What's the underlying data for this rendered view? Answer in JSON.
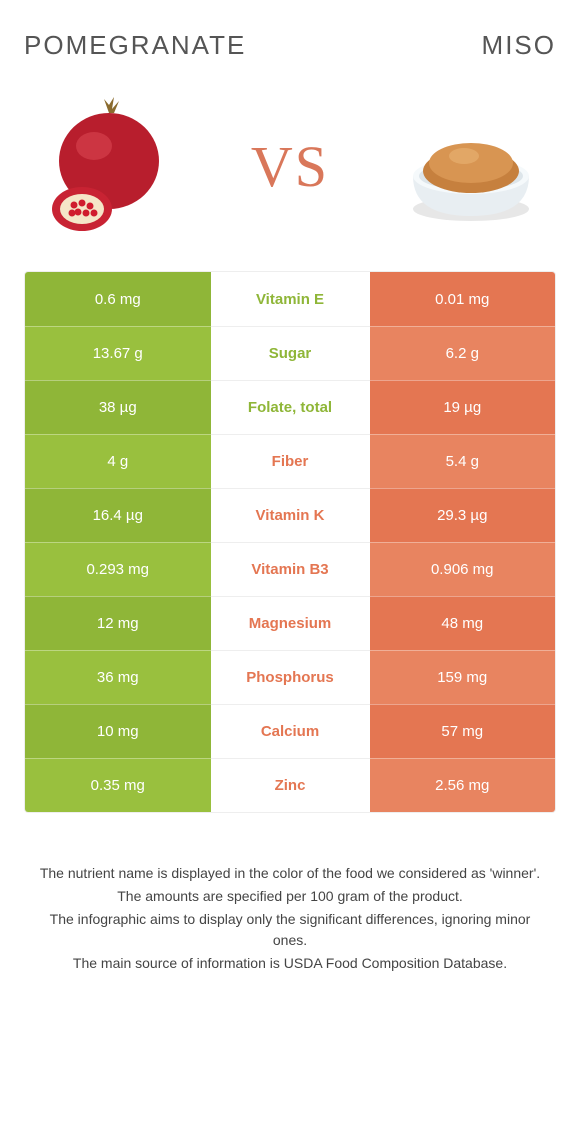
{
  "colors": {
    "left": "#8fb638",
    "left_alt": "#99c03e",
    "right": "#e47652",
    "right_alt": "#e88460",
    "vs_text": "#d9775a",
    "title_text": "#555555"
  },
  "header": {
    "left_title": "POMEGRANATE",
    "right_title": "MISO",
    "vs": "VS"
  },
  "rows": [
    {
      "left": "0.6 mg",
      "label": "Vitamin E",
      "right": "0.01 mg",
      "winner": "left"
    },
    {
      "left": "13.67 g",
      "label": "Sugar",
      "right": "6.2 g",
      "winner": "left"
    },
    {
      "left": "38 µg",
      "label": "Folate, total",
      "right": "19 µg",
      "winner": "left"
    },
    {
      "left": "4 g",
      "label": "Fiber",
      "right": "5.4 g",
      "winner": "right"
    },
    {
      "left": "16.4 µg",
      "label": "Vitamin K",
      "right": "29.3 µg",
      "winner": "right"
    },
    {
      "left": "0.293 mg",
      "label": "Vitamin B3",
      "right": "0.906 mg",
      "winner": "right"
    },
    {
      "left": "12 mg",
      "label": "Magnesium",
      "right": "48 mg",
      "winner": "right"
    },
    {
      "left": "36 mg",
      "label": "Phosphorus",
      "right": "159 mg",
      "winner": "right"
    },
    {
      "left": "10 mg",
      "label": "Calcium",
      "right": "57 mg",
      "winner": "right"
    },
    {
      "left": "0.35 mg",
      "label": "Zinc",
      "right": "2.56 mg",
      "winner": "right"
    }
  ],
  "footnotes": [
    "The nutrient name is displayed in the color of the food we considered as 'winner'.",
    "The amounts are specified per 100 gram of the product.",
    "The infographic aims to display only the significant differences, ignoring minor ones.",
    "The main source of information is USDA Food Composition Database."
  ]
}
